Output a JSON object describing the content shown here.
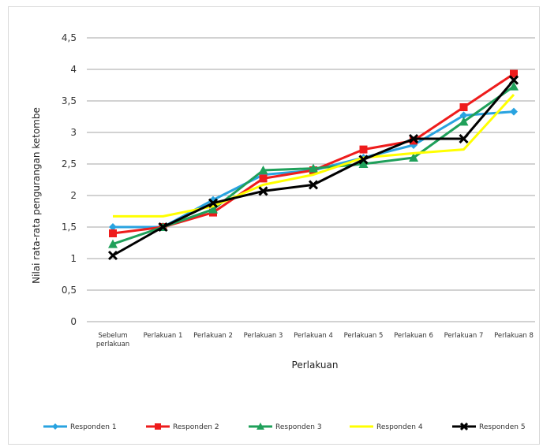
{
  "chart_data": {
    "type": "line",
    "title": "",
    "xlabel": "Perlakuan",
    "ylabel": "Nilai rata-rata pengurangan ketombe",
    "ylim": [
      0,
      4.5
    ],
    "yticks": [
      "0",
      "0,5",
      "1",
      "1,5",
      "2",
      "2,5",
      "3",
      "3,5",
      "4",
      "4,5"
    ],
    "grid": true,
    "legend": "bottom",
    "categories": [
      [
        "Sebelum",
        "perlakuan"
      ],
      [
        "Perlakuan 1"
      ],
      [
        "Perlakuan 2"
      ],
      [
        "Perlakuan 3"
      ],
      [
        "Perlakuan 4"
      ],
      [
        "Perlakuan 5"
      ],
      [
        "Perlakuan 6"
      ],
      [
        "Perlakuan 7"
      ],
      [
        "Perlakuan 8"
      ]
    ],
    "series": [
      {
        "name": "Responden 1",
        "color": "#29a3e0",
        "marker": "diamond",
        "values": [
          1.5,
          1.5,
          1.93,
          2.33,
          2.4,
          2.6,
          2.8,
          3.27,
          3.33
        ]
      },
      {
        "name": "Responden 2",
        "color": "#ee1c1c",
        "marker": "square",
        "values": [
          1.4,
          1.5,
          1.73,
          2.27,
          2.4,
          2.73,
          2.87,
          3.4,
          3.93
        ]
      },
      {
        "name": "Responden 3",
        "color": "#1fa05a",
        "marker": "triangle",
        "values": [
          1.23,
          1.5,
          1.78,
          2.4,
          2.43,
          2.5,
          2.6,
          3.17,
          3.73
        ]
      },
      {
        "name": "Responden 4",
        "color": "#ffff00",
        "marker": "none",
        "values": [
          1.67,
          1.67,
          1.83,
          2.17,
          2.33,
          2.6,
          2.67,
          2.73,
          3.6
        ]
      },
      {
        "name": "Responden 5",
        "color": "#000000",
        "marker": "x",
        "values": [
          1.05,
          1.5,
          1.88,
          2.07,
          2.17,
          2.57,
          2.9,
          2.9,
          3.83
        ]
      }
    ]
  }
}
